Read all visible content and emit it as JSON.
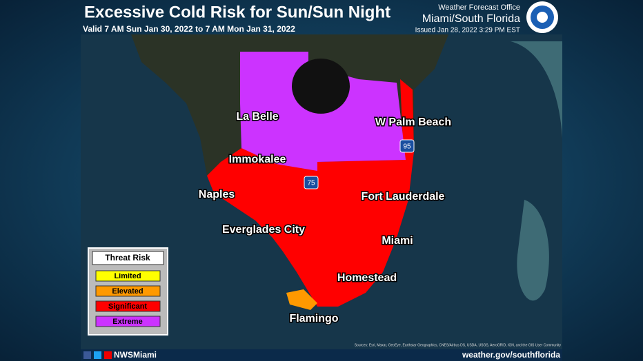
{
  "header": {
    "title": "Excessive Cold Risk for Sun/Sun Night",
    "valid": "Valid 7 AM Sun Jan 30, 2022 to 7 AM Mon Jan 31, 2022",
    "office": "Weather Forecast Office",
    "region": "Miami/South Florida",
    "issued": "Issued Jan 28, 2022 3:29 PM EST"
  },
  "cities": [
    {
      "label": "La Belle"
    },
    {
      "label": "W Palm Beach"
    },
    {
      "label": "Immokalee"
    },
    {
      "label": "Naples"
    },
    {
      "label": "Fort Lauderdale"
    },
    {
      "label": "Everglades City"
    },
    {
      "label": "Miami"
    },
    {
      "label": "Homestead"
    },
    {
      "label": "Flamingo"
    }
  ],
  "highways": [
    "75",
    "95"
  ],
  "legend": {
    "title": "Threat Risk",
    "items": [
      {
        "label": "Limited",
        "color": "#ffff00"
      },
      {
        "label": "Elevated",
        "color": "#ff9900"
      },
      {
        "label": "Significant",
        "color": "#ff0000"
      },
      {
        "label": "Extreme",
        "color": "#cc33ff"
      }
    ]
  },
  "source": "Sources: Esri, Maxar, GeoEye, Earthstar Geographics, CNES/Airbus DS, USDA, USGS, AeroGRID, IGN, and the GIS User Community",
  "footer": {
    "handle": "NWSMiami",
    "url": "weather.gov/southflorida"
  }
}
